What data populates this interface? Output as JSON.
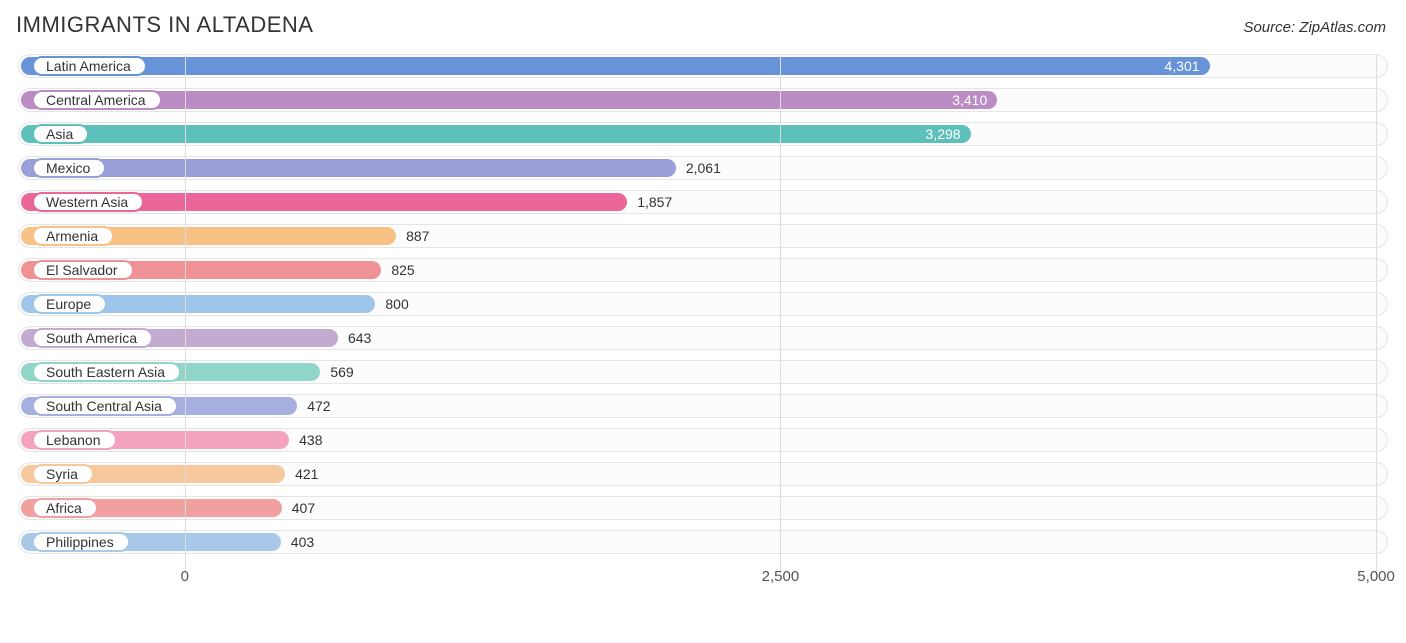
{
  "header": {
    "title": "IMMIGRANTS IN ALTADENA",
    "source": "Source: ZipAtlas.com"
  },
  "chart": {
    "type": "bar-horizontal",
    "background_color": "#ffffff",
    "track_border_color": "#e5e5e5",
    "track_background": "#fcfcfc",
    "grid_color": "#dddddd",
    "text_color": "#333333",
    "label_fontsize": 14,
    "value_fontsize": 14,
    "title_fontsize": 22,
    "xlim": [
      -700,
      5050
    ],
    "xticks": [
      0,
      2500,
      5000
    ],
    "xtick_labels": [
      "0",
      "2,500",
      "5,000"
    ],
    "bar_origin": 0,
    "rows": [
      {
        "label": "Latin America",
        "value": 4301,
        "display": "4,301",
        "bar_color": "#6793d8",
        "pill_border": "#6793d8",
        "value_inside": true,
        "value_color": "#ffffff"
      },
      {
        "label": "Central America",
        "value": 3410,
        "display": "3,410",
        "bar_color": "#bb8bc4",
        "pill_border": "#bb8bc4",
        "value_inside": true,
        "value_color": "#ffffff"
      },
      {
        "label": "Asia",
        "value": 3298,
        "display": "3,298",
        "bar_color": "#5ec0ba",
        "pill_border": "#5ec0ba",
        "value_inside": true,
        "value_color": "#ffffff"
      },
      {
        "label": "Mexico",
        "value": 2061,
        "display": "2,061",
        "bar_color": "#9b9fd8",
        "pill_border": "#9b9fd8",
        "value_inside": false,
        "value_color": "#333333"
      },
      {
        "label": "Western Asia",
        "value": 1857,
        "display": "1,857",
        "bar_color": "#eb6699",
        "pill_border": "#eb6699",
        "value_inside": false,
        "value_color": "#333333"
      },
      {
        "label": "Armenia",
        "value": 887,
        "display": "887",
        "bar_color": "#f8c186",
        "pill_border": "#f8c186",
        "value_inside": false,
        "value_color": "#333333"
      },
      {
        "label": "El Salvador",
        "value": 825,
        "display": "825",
        "bar_color": "#ef9296",
        "pill_border": "#ef9296",
        "value_inside": false,
        "value_color": "#333333"
      },
      {
        "label": "Europe",
        "value": 800,
        "display": "800",
        "bar_color": "#9ec6ea",
        "pill_border": "#9ec6ea",
        "value_inside": false,
        "value_color": "#333333"
      },
      {
        "label": "South America",
        "value": 643,
        "display": "643",
        "bar_color": "#c3aad0",
        "pill_border": "#c3aad0",
        "value_inside": false,
        "value_color": "#333333"
      },
      {
        "label": "South Eastern Asia",
        "value": 569,
        "display": "569",
        "bar_color": "#8fd6c8",
        "pill_border": "#8fd6c8",
        "value_inside": false,
        "value_color": "#333333"
      },
      {
        "label": "South Central Asia",
        "value": 472,
        "display": "472",
        "bar_color": "#a7afe0",
        "pill_border": "#a7afe0",
        "value_inside": false,
        "value_color": "#333333"
      },
      {
        "label": "Lebanon",
        "value": 438,
        "display": "438",
        "bar_color": "#f3a3c0",
        "pill_border": "#f3a3c0",
        "value_inside": false,
        "value_color": "#333333"
      },
      {
        "label": "Syria",
        "value": 421,
        "display": "421",
        "bar_color": "#f6c89c",
        "pill_border": "#f6c89c",
        "value_inside": false,
        "value_color": "#333333"
      },
      {
        "label": "Africa",
        "value": 407,
        "display": "407",
        "bar_color": "#f1a0a0",
        "pill_border": "#f1a0a0",
        "value_inside": false,
        "value_color": "#333333"
      },
      {
        "label": "Philippines",
        "value": 403,
        "display": "403",
        "bar_color": "#a7c9e7",
        "pill_border": "#a7c9e7",
        "value_inside": false,
        "value_color": "#333333"
      }
    ]
  }
}
